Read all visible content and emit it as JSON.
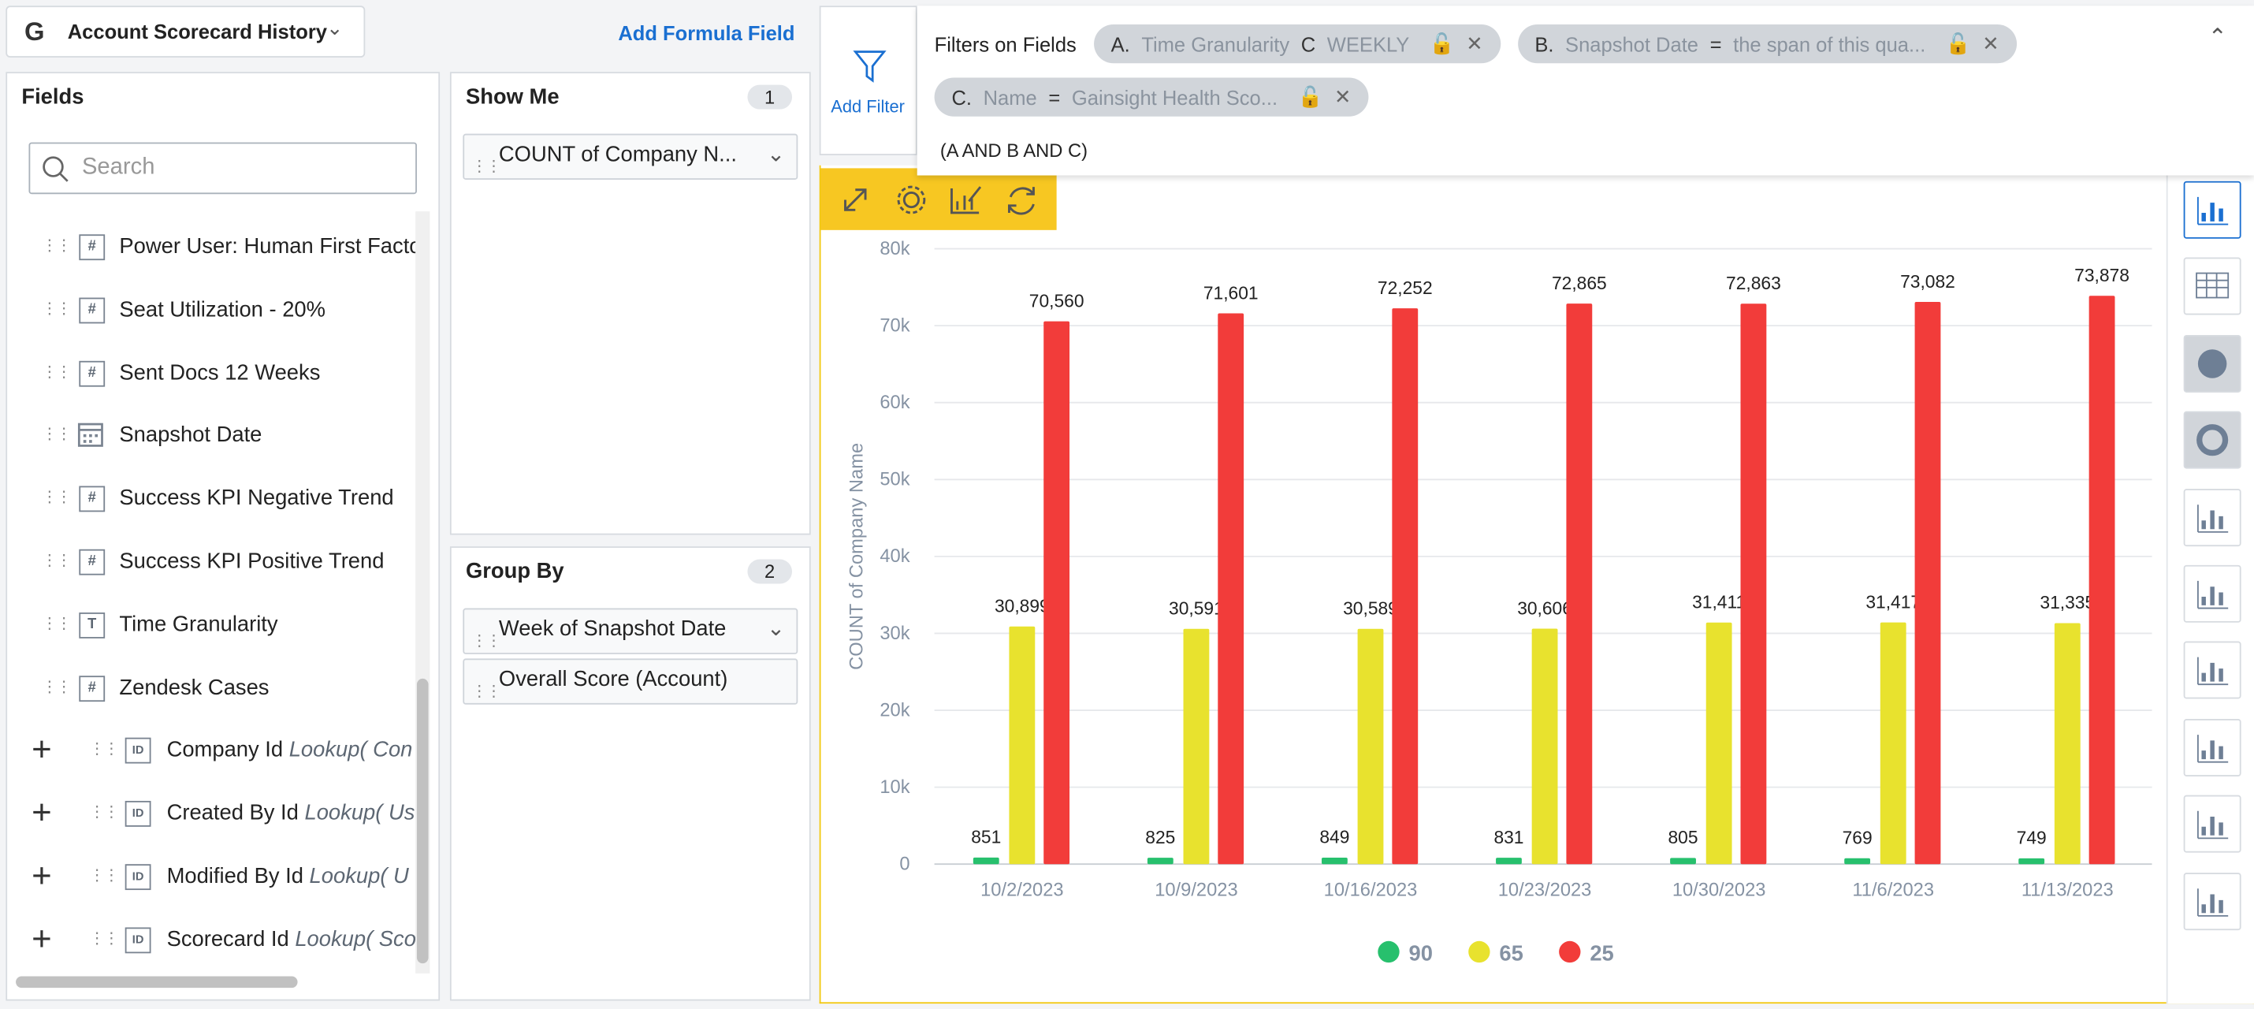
{
  "header": {
    "title": "Account Scorecard History",
    "add_formula": "Add Formula Field"
  },
  "fields": {
    "title": "Fields",
    "search": "Search",
    "items": [
      {
        "icon": "#",
        "label": "Power User: Human First Facto"
      },
      {
        "icon": "#",
        "label": "Seat Utilization - 20%"
      },
      {
        "icon": "#",
        "label": "Sent Docs 12 Weeks"
      },
      {
        "label": "Snapshot Date"
      },
      {
        "icon": "#",
        "label": "Success KPI Negative Trend"
      },
      {
        "icon": "#",
        "label": "Success KPI Positive Trend"
      },
      {
        "icon": "T",
        "label": "Time Granularity"
      },
      {
        "icon": "#",
        "label": "Zendesk Cases"
      }
    ],
    "lookups": [
      {
        "icon": "ID",
        "label": "Company Id",
        "lookup": "Lookup( Con"
      },
      {
        "icon": "ID",
        "label": "Created By Id",
        "lookup": "Lookup( Us"
      },
      {
        "icon": "ID",
        "label": "Modified By Id",
        "lookup": "Lookup( U"
      },
      {
        "icon": "ID",
        "label": "Scorecard Id",
        "lookup": "Lookup( Sco"
      }
    ]
  },
  "show_me": {
    "title": "Show Me",
    "count": 1,
    "items": [
      "COUNT of Company N..."
    ]
  },
  "group_by": {
    "title": "Group By",
    "count": 2,
    "items": [
      "Week of Snapshot Date",
      "Overall Score (Account)"
    ]
  },
  "filters": {
    "add": "Add Filter",
    "title": "Filters on Fields",
    "chips": [
      {
        "key": "A.",
        "field": "Time Granularity",
        "op": "C",
        "value": "WEEKLY"
      },
      {
        "key": "B.",
        "field": "Snapshot Date",
        "op": "=",
        "value": "the span of this qua..."
      },
      {
        "key": "C.",
        "field": "Name",
        "op": "=",
        "value": "Gainsight Health Sco..."
      }
    ],
    "logic": "(A AND B AND C)"
  },
  "chart_data": {
    "type": "bar",
    "y_label": "COUNT of Company Name",
    "categories": [
      "10/2/2023",
      "10/9/2023",
      "10/16/2023",
      "10/23/2023",
      "10/30/2023",
      "11/6/2023",
      "11/13/2023"
    ],
    "series": [
      {
        "name": "90",
        "color": "#27c06d",
        "values": [
          851,
          825,
          849,
          831,
          805,
          769,
          749
        ],
        "value_labels": [
          "851",
          "825",
          "849",
          "831",
          "805",
          "769",
          "749"
        ]
      },
      {
        "name": "65",
        "color": "#e8e22e",
        "values": [
          30899,
          30591,
          30589,
          30606,
          31411,
          31417,
          31335
        ],
        "value_labels": [
          "30,899",
          "30,591",
          "30,589",
          "30,606",
          "31,411",
          "31,417",
          "31,335"
        ]
      },
      {
        "name": "25",
        "color": "#f23c3a",
        "values": [
          70560,
          71601,
          72252,
          72865,
          72863,
          73082,
          73878
        ],
        "value_labels": [
          "70,560",
          "71,601",
          "72,252",
          "72,865",
          "72,863",
          "73,082",
          "73,878"
        ]
      }
    ],
    "ylim": [
      0,
      80000
    ],
    "yticks": [
      0,
      {
        "value": 10000,
        "label": "10k"
      },
      {
        "value": 20000,
        "label": "20k"
      },
      {
        "value": 30000,
        "label": "30k"
      },
      {
        "value": 40000,
        "label": "40k"
      },
      {
        "value": 50000,
        "label": "50k"
      },
      {
        "value": 60000,
        "label": "60k"
      },
      {
        "value": 70000,
        "label": "70k"
      },
      {
        "value": 80000,
        "label": "80k"
      }
    ],
    "grid": true,
    "legend": "bottom"
  }
}
